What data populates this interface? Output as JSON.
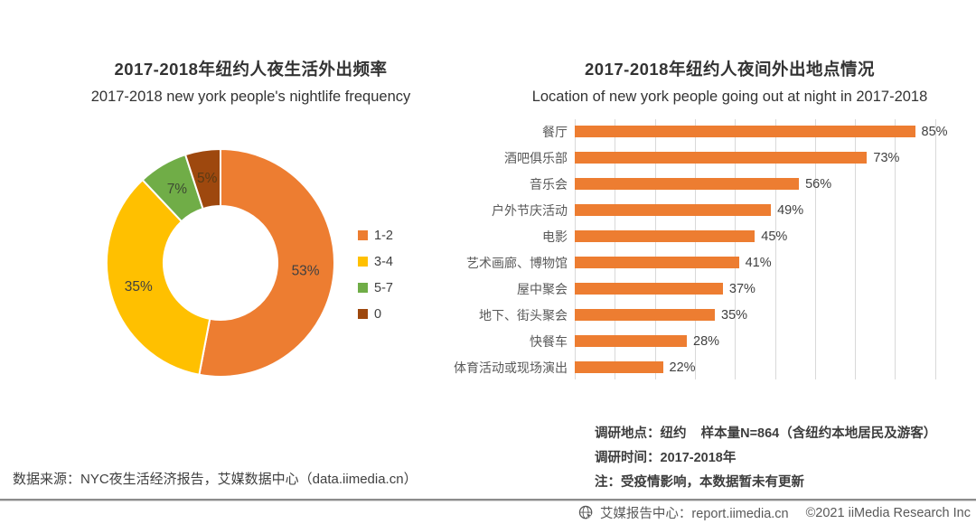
{
  "colors": {
    "accent_orange": "#ED7D31",
    "gridline": "#D9D9D9",
    "title_text": "#333333",
    "category_text": "#595959",
    "value_text": "#404040"
  },
  "chart_data": [
    {
      "type": "pie",
      "subtype": "donut",
      "title": "2017-2018年纽约人夜生活外出频率",
      "subtitle": "2017-2018 new york people's nightlife frequency",
      "categories": [
        "1-2",
        "3-4",
        "5-7",
        "0"
      ],
      "values": [
        53,
        35,
        7,
        5
      ],
      "labels": [
        "53%",
        "35%",
        "7%",
        "5%"
      ],
      "colors": [
        "#ED7D31",
        "#FFC000",
        "#70AD47",
        "#9E480E"
      ],
      "label_colors": [
        "#404040",
        "#404040",
        "#3d4a32",
        "#5a3a14"
      ],
      "unit": "%",
      "start_angle": "12-oclock",
      "direction": "clockwise",
      "inner_radius_ratio": 0.5,
      "legend_position": "right"
    },
    {
      "type": "bar",
      "orientation": "horizontal",
      "title": "2017-2018年纽约人夜间外出地点情况",
      "subtitle": "Location of new york people going out at night in 2017-2018",
      "categories": [
        "餐厅",
        "酒吧俱乐部",
        "音乐会",
        "户外节庆活动",
        "电影",
        "艺术画廊、博物馆",
        "屋中聚会",
        "地下、街头聚会",
        "快餐车",
        "体育活动或现场演出"
      ],
      "values": [
        85,
        73,
        56,
        49,
        45,
        41,
        37,
        35,
        28,
        22
      ],
      "value_labels": [
        "85%",
        "73%",
        "56%",
        "49%",
        "45%",
        "41%",
        "37%",
        "35%",
        "28%",
        "22%"
      ],
      "unit": "%",
      "bar_color": "#ED7D31",
      "xlim": [
        0,
        100
      ],
      "gridline_step": 10,
      "grid": "vertical",
      "value_label_position": "outside-end"
    }
  ],
  "survey_notes": [
    "调研地点：纽约    样本量N=864（含纽约本地居民及游客）",
    "调研时间：2017-2018年",
    "注：受疫情影响，本数据暂未有更新"
  ],
  "source_note": "数据来源：NYC夜生活经济报告，艾媒数据中心（data.iimedia.cn）",
  "footer": {
    "brand": "艾媒报告中心：report.iimedia.cn",
    "copyright": "©2021  iiMedia Research Inc",
    "icon": "globe-cursor-icon"
  }
}
